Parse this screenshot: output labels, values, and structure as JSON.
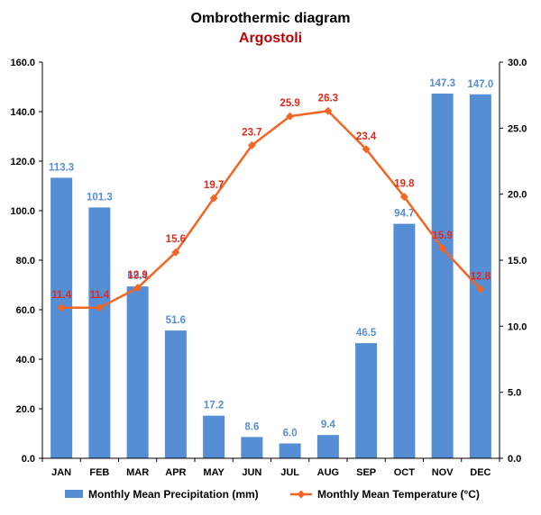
{
  "chart_data": {
    "type": "bar",
    "title": "Ombrothermic diagram",
    "subtitle": "Argostoli",
    "categories": [
      "JAN",
      "FEB",
      "MAR",
      "APR",
      "MAY",
      "JUN",
      "JUL",
      "AUG",
      "SEP",
      "OCT",
      "NOV",
      "DEC"
    ],
    "series": [
      {
        "name": "Monthly Mean Precipitation (mm)",
        "type": "bar",
        "axis": "left",
        "color": "#558ed5",
        "values": [
          113.3,
          101.3,
          69.4,
          51.6,
          17.2,
          8.6,
          6.0,
          9.4,
          46.5,
          94.7,
          147.3,
          147.0
        ],
        "labels": [
          "113.3",
          "101.3",
          "69.4",
          "51.6",
          "17.2",
          "8.6",
          "6.0",
          "9.4",
          "46.5",
          "94.7",
          "147.3",
          "147.0"
        ]
      },
      {
        "name": "Monthly Mean Temperature (°C)",
        "type": "line",
        "axis": "right",
        "color": "#f26522",
        "label_color": "#e02a1a",
        "marker": "diamond",
        "values": [
          11.4,
          11.4,
          12.9,
          15.6,
          19.7,
          23.7,
          25.9,
          26.3,
          23.4,
          19.8,
          15.9,
          12.8
        ],
        "labels": [
          "11.4",
          "11.4",
          "12.9",
          "15.6",
          "19.7",
          "23.7",
          "25.9",
          "26.3",
          "23.4",
          "19.8",
          "15.9",
          "12.8"
        ]
      }
    ],
    "y_left": {
      "range": [
        0,
        160
      ],
      "ticks": [
        "0.0",
        "20.0",
        "40.0",
        "60.0",
        "80.0",
        "100.0",
        "120.0",
        "140.0",
        "160.0"
      ]
    },
    "y_right": {
      "range": [
        0,
        30
      ],
      "ticks": [
        "0.0",
        "5.0",
        "10.0",
        "15.0",
        "20.0",
        "25.0",
        "30.0"
      ]
    },
    "grid": false,
    "legend_position": "bottom",
    "title_color": "#000000",
    "subtitle_color": "#c00000",
    "axis_color": "#000000"
  }
}
